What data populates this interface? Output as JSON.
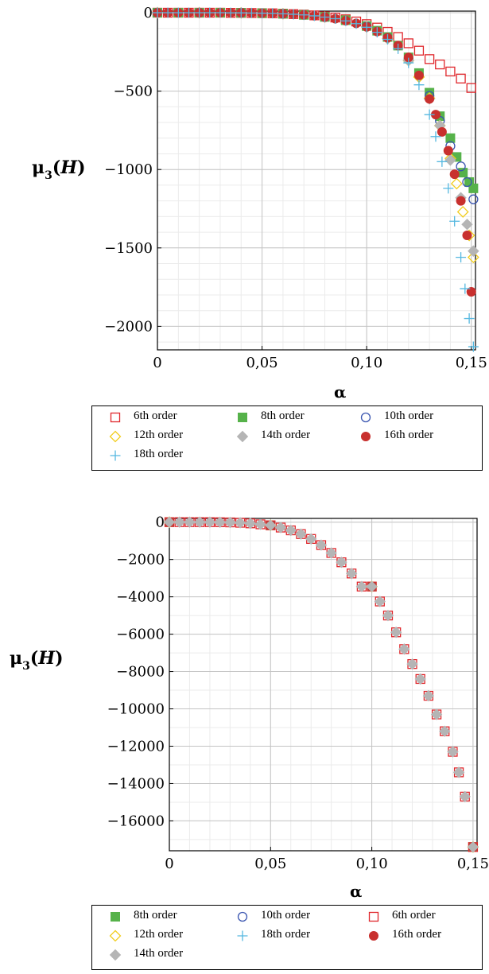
{
  "chart_data": [
    {
      "type": "scatter",
      "title": "",
      "xlabel": "α",
      "ylabel": "μ3(H)",
      "ylabel_parts": {
        "mu": "μ",
        "sub": "3",
        "open": "(",
        "H": "H",
        "close": ")"
      },
      "xlim": [
        0,
        0.152
      ],
      "ylim": [
        -2150,
        10
      ],
      "xticks": [
        0,
        0.05,
        0.1,
        0.15
      ],
      "xtick_labels": [
        "0",
        "0,05",
        "0,10",
        "0,15"
      ],
      "yticks": [
        0,
        -500,
        -1000,
        -1500,
        -2000
      ],
      "ytick_labels": [
        "0",
        "−500",
        "−1000",
        "−1500",
        "−2000"
      ],
      "grid": true,
      "legend_position": "bottom",
      "series": [
        {
          "name": "6th order",
          "marker": "open-square",
          "color": "#e0262b",
          "x": [
            0,
            0.005,
            0.01,
            0.015,
            0.02,
            0.025,
            0.03,
            0.035,
            0.04,
            0.045,
            0.05,
            0.055,
            0.06,
            0.065,
            0.07,
            0.075,
            0.08,
            0.085,
            0.09,
            0.095,
            0.1,
            0.105,
            0.11,
            0.115,
            0.12,
            0.125,
            0.13,
            0.135,
            0.14,
            0.145,
            0.15
          ],
          "y": [
            0,
            0,
            0,
            0,
            0,
            0,
            0,
            -1,
            -1,
            -2,
            -3,
            -4,
            -6,
            -9,
            -12,
            -17,
            -23,
            -31,
            -42,
            -56,
            -73,
            -95,
            -122,
            -155,
            -195,
            -242,
            -296,
            -330,
            -375,
            -420,
            -480
          ]
        },
        {
          "name": "8th order",
          "marker": "filled-square",
          "color": "#56b24a",
          "x": [
            0,
            0.01,
            0.02,
            0.03,
            0.04,
            0.05,
            0.06,
            0.07,
            0.08,
            0.09,
            0.1,
            0.105,
            0.11,
            0.115,
            0.12,
            0.125,
            0.13,
            0.135,
            0.14,
            0.143,
            0.146,
            0.149,
            0.151
          ],
          "y": [
            0,
            0,
            0,
            0,
            -1,
            -3,
            -7,
            -14,
            -27,
            -48,
            -85,
            -115,
            -155,
            -210,
            -285,
            -385,
            -510,
            -660,
            -800,
            -920,
            -1020,
            -1080,
            -1120
          ]
        },
        {
          "name": "10th order",
          "marker": "open-circle",
          "color": "#3a55b0",
          "x": [
            0,
            0.02,
            0.04,
            0.06,
            0.08,
            0.1,
            0.11,
            0.12,
            0.13,
            0.135,
            0.14,
            0.145,
            0.148,
            0.151
          ],
          "y": [
            0,
            0,
            -1,
            -7,
            -28,
            -88,
            -160,
            -295,
            -530,
            -690,
            -850,
            -980,
            -1080,
            -1190
          ]
        },
        {
          "name": "12th order",
          "marker": "open-diamond",
          "color": "#f1cd1e",
          "x": [
            0,
            0.02,
            0.04,
            0.06,
            0.08,
            0.1,
            0.11,
            0.12,
            0.125,
            0.13,
            0.135,
            0.14,
            0.143,
            0.146,
            0.149,
            0.151
          ],
          "y": [
            0,
            0,
            -1,
            -7,
            -28,
            -90,
            -165,
            -305,
            -410,
            -545,
            -720,
            -930,
            -1090,
            -1270,
            -1420,
            -1560
          ]
        },
        {
          "name": "14th order",
          "marker": "filled-diamond",
          "color": "#b5b5b5",
          "x": [
            0,
            0.02,
            0.04,
            0.06,
            0.08,
            0.1,
            0.11,
            0.12,
            0.13,
            0.135,
            0.14,
            0.145,
            0.148,
            0.151
          ],
          "y": [
            0,
            0,
            -1,
            -7,
            -28,
            -90,
            -165,
            -305,
            -550,
            -720,
            -940,
            -1180,
            -1350,
            -1520
          ]
        },
        {
          "name": "16th order",
          "marker": "filled-circle",
          "color": "#c8302e",
          "x": [
            0,
            0.005,
            0.01,
            0.015,
            0.02,
            0.025,
            0.03,
            0.035,
            0.04,
            0.045,
            0.05,
            0.055,
            0.06,
            0.065,
            0.07,
            0.075,
            0.08,
            0.085,
            0.09,
            0.095,
            0.1,
            0.105,
            0.11,
            0.115,
            0.12,
            0.125,
            0.13,
            0.133,
            0.136,
            0.139,
            0.142,
            0.145,
            0.148,
            0.15
          ],
          "y": [
            0,
            0,
            0,
            0,
            0,
            0,
            0,
            -1,
            -1,
            -2,
            -3,
            -4,
            -7,
            -10,
            -14,
            -20,
            -28,
            -38,
            -51,
            -68,
            -90,
            -120,
            -160,
            -210,
            -285,
            -400,
            -550,
            -650,
            -760,
            -880,
            -1030,
            -1200,
            -1420,
            -1780
          ]
        },
        {
          "name": "18th order",
          "marker": "plus",
          "color": "#55b8e0",
          "x": [
            0,
            0.005,
            0.01,
            0.015,
            0.02,
            0.025,
            0.03,
            0.035,
            0.04,
            0.045,
            0.05,
            0.055,
            0.06,
            0.065,
            0.07,
            0.075,
            0.08,
            0.085,
            0.09,
            0.095,
            0.1,
            0.105,
            0.11,
            0.115,
            0.12,
            0.125,
            0.13,
            0.133,
            0.136,
            0.139,
            0.142,
            0.145,
            0.147,
            0.149,
            0.151
          ],
          "y": [
            0,
            0,
            0,
            0,
            0,
            0,
            0,
            -1,
            -1,
            -2,
            -3,
            -4,
            -7,
            -10,
            -14,
            -20,
            -28,
            -38,
            -52,
            -70,
            -93,
            -125,
            -170,
            -230,
            -320,
            -460,
            -650,
            -790,
            -950,
            -1120,
            -1330,
            -1560,
            -1760,
            -1950,
            -2130
          ]
        }
      ]
    },
    {
      "type": "scatter",
      "title": "",
      "xlabel": "α",
      "ylabel": "μ3(H)",
      "ylabel_parts": {
        "mu": "μ",
        "sub": "3",
        "open": "(",
        "H": "H",
        "close": ")"
      },
      "xlim": [
        0,
        0.152
      ],
      "ylim": [
        -17600,
        200
      ],
      "xticks": [
        0,
        0.05,
        0.1,
        0.15
      ],
      "xtick_labels": [
        "0",
        "0,05",
        "0,10",
        "0,15"
      ],
      "yticks": [
        0,
        -2000,
        -4000,
        -6000,
        -8000,
        -10000,
        -12000,
        -14000,
        -16000
      ],
      "ytick_labels": [
        "0",
        "−2000",
        "−4000",
        "−6000",
        "−8000",
        "−10000",
        "−12000",
        "−14000",
        "−16000"
      ],
      "grid": true,
      "legend_position": "bottom",
      "series": [
        {
          "name": "8th order",
          "marker": "filled-square",
          "color": "#56b24a",
          "x": [
            0,
            0.05,
            0.1,
            0.15
          ],
          "y": [
            0,
            -170,
            -3450,
            -17400
          ]
        },
        {
          "name": "10th order",
          "marker": "open-circle",
          "color": "#3a55b0",
          "x": [
            0,
            0.05,
            0.1,
            0.15
          ],
          "y": [
            0,
            -170,
            -3450,
            -17400
          ]
        },
        {
          "name": "6th order",
          "marker": "open-square",
          "color": "#e0262b",
          "x": [
            0,
            0.005,
            0.01,
            0.015,
            0.02,
            0.025,
            0.03,
            0.035,
            0.04,
            0.045,
            0.05,
            0.055,
            0.06,
            0.065,
            0.07,
            0.075,
            0.08,
            0.085,
            0.09,
            0.095,
            0.1,
            0.104,
            0.108,
            0.112,
            0.116,
            0.12,
            0.124,
            0.128,
            0.132,
            0.136,
            0.14,
            0.143,
            0.146,
            0.15
          ],
          "y": [
            0,
            0,
            0,
            0,
            -1,
            -5,
            -14,
            -33,
            -65,
            -118,
            -170,
            -290,
            -440,
            -640,
            -900,
            -1230,
            -1650,
            -2150,
            -2750,
            -3450,
            -3450,
            -4250,
            -5000,
            -5900,
            -6800,
            -7600,
            -8400,
            -9300,
            -10300,
            -11200,
            -12300,
            -13400,
            -14700,
            -17400
          ]
        },
        {
          "name": "12th order",
          "marker": "open-diamond",
          "color": "#f1cd1e",
          "x": [
            0,
            0.05,
            0.1,
            0.15
          ],
          "y": [
            0,
            -170,
            -3450,
            -17400
          ]
        },
        {
          "name": "18th order",
          "marker": "plus",
          "color": "#55b8e0",
          "x": [
            0,
            0.05,
            0.1,
            0.15
          ],
          "y": [
            0,
            -170,
            -3450,
            -17400
          ]
        },
        {
          "name": "16th order",
          "marker": "filled-circle",
          "color": "#c8302e",
          "x": [
            0,
            0.05,
            0.1,
            0.15
          ],
          "y": [
            0,
            -170,
            -3450,
            -17400
          ]
        },
        {
          "name": "14th order",
          "marker": "filled-diamond",
          "color": "#b5b5b5",
          "x": [
            0,
            0.005,
            0.01,
            0.015,
            0.02,
            0.025,
            0.03,
            0.035,
            0.04,
            0.045,
            0.05,
            0.055,
            0.06,
            0.065,
            0.07,
            0.075,
            0.08,
            0.085,
            0.09,
            0.095,
            0.1,
            0.104,
            0.108,
            0.112,
            0.116,
            0.12,
            0.124,
            0.128,
            0.132,
            0.136,
            0.14,
            0.143,
            0.146,
            0.15
          ],
          "y": [
            0,
            0,
            0,
            0,
            -1,
            -5,
            -14,
            -33,
            -65,
            -118,
            -170,
            -290,
            -440,
            -640,
            -900,
            -1230,
            -1650,
            -2150,
            -2750,
            -3450,
            -3450,
            -4250,
            -5000,
            -5900,
            -6800,
            -7600,
            -8400,
            -9300,
            -10300,
            -11200,
            -12300,
            -13400,
            -14700,
            -17400
          ]
        }
      ]
    }
  ]
}
